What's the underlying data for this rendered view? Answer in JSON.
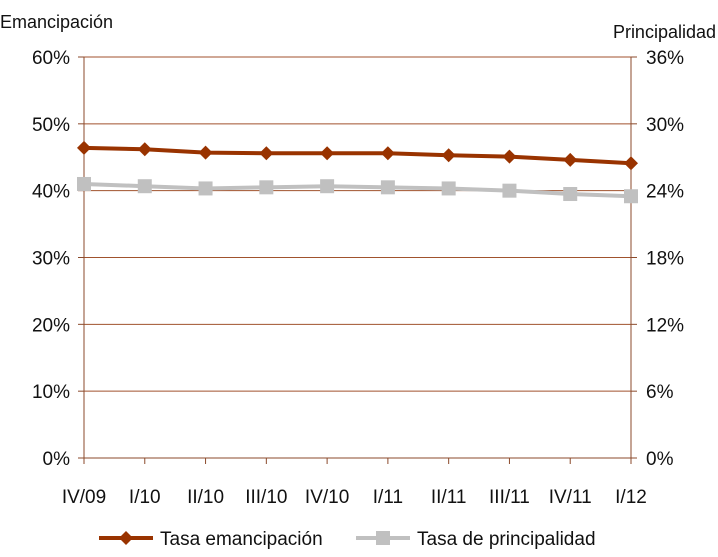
{
  "chart_data": {
    "type": "line",
    "title": "",
    "categories": [
      "IV/09",
      "I/10",
      "II/10",
      "III/10",
      "IV/10",
      "I/11",
      "II/11",
      "III/11",
      "IV/11",
      "I/12"
    ],
    "y_left": {
      "label": "Emancipación",
      "min": 0,
      "max": 60,
      "ticks": [
        0,
        10,
        20,
        30,
        40,
        50,
        60
      ],
      "tick_labels": [
        "0%",
        "10%",
        "20%",
        "30%",
        "40%",
        "50%",
        "60%"
      ]
    },
    "y_right": {
      "label": "Principalidad",
      "min": 0,
      "max": 36,
      "ticks": [
        0,
        6,
        12,
        18,
        24,
        30,
        36
      ],
      "tick_labels": [
        "0%",
        "6%",
        "12%",
        "18%",
        "24%",
        "30%",
        "36%"
      ]
    },
    "grid": "horizontal",
    "legend_position": "bottom",
    "series": [
      {
        "name": "Tasa emancipación",
        "axis": "left",
        "color": "#993300",
        "marker": "diamond",
        "values": [
          46.4,
          46.2,
          45.7,
          45.6,
          45.6,
          45.6,
          45.3,
          45.1,
          44.6,
          44.1
        ]
      },
      {
        "name": "Tasa de principalidad",
        "axis": "right",
        "color": "#c0c0c0",
        "marker": "square",
        "values": [
          24.6,
          24.4,
          24.2,
          24.3,
          24.4,
          24.3,
          24.2,
          24.0,
          23.7,
          23.5
        ]
      }
    ]
  }
}
